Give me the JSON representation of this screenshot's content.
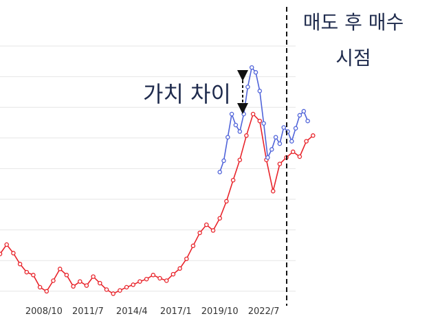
{
  "chart_data": {
    "type": "line",
    "x_ticks": [
      "2008/10",
      "2011/7",
      "2014/4",
      "2017/1",
      "2019/10",
      "2022/7"
    ],
    "y_gridlines": 9,
    "grid": "horizontal",
    "legend": "none",
    "series": [
      {
        "color": "#e8232a",
        "marker": "open-circle",
        "points": [
          [
            "2006/1",
            0.56
          ],
          [
            "2006/6",
            0.583
          ],
          [
            "2006/11",
            0.562
          ],
          [
            "2007/4",
            0.535
          ],
          [
            "2007/9",
            0.515
          ],
          [
            "2008/2",
            0.508
          ],
          [
            "2008/7",
            0.478
          ],
          [
            "2008/12",
            0.468
          ],
          [
            "2009/5",
            0.494
          ],
          [
            "2009/10",
            0.523
          ],
          [
            "2010/3",
            0.508
          ],
          [
            "2010/8",
            0.48
          ],
          [
            "2011/1",
            0.492
          ],
          [
            "2011/6",
            0.482
          ],
          [
            "2011/11",
            0.504
          ],
          [
            "2012/4",
            0.488
          ],
          [
            "2012/9",
            0.472
          ],
          [
            "2013/2",
            0.462
          ],
          [
            "2013/7",
            0.47
          ],
          [
            "2013/12",
            0.478
          ],
          [
            "2014/5",
            0.484
          ],
          [
            "2014/10",
            0.492
          ],
          [
            "2015/3",
            0.498
          ],
          [
            "2015/8",
            0.508
          ],
          [
            "2016/1",
            0.5
          ],
          [
            "2016/6",
            0.494
          ],
          [
            "2016/11",
            0.51
          ],
          [
            "2017/4",
            0.524
          ],
          [
            "2017/9",
            0.548
          ],
          [
            "2018/2",
            0.58
          ],
          [
            "2018/7",
            0.612
          ],
          [
            "2018/12",
            0.632
          ],
          [
            "2019/5",
            0.618
          ],
          [
            "2019/10",
            0.648
          ],
          [
            "2020/3",
            0.69
          ],
          [
            "2020/8",
            0.742
          ],
          [
            "2021/1",
            0.792
          ],
          [
            "2021/6",
            0.852
          ],
          [
            "2021/11",
            0.905
          ],
          [
            "2022/4",
            0.888
          ],
          [
            "2022/9",
            0.792
          ],
          [
            "2023/2",
            0.715
          ],
          [
            "2023/7",
            0.782
          ],
          [
            "2023/12",
            0.798
          ],
          [
            "2024/5",
            0.812
          ],
          [
            "2024/10",
            0.8
          ],
          [
            "2025/3",
            0.838
          ],
          [
            "2025/8",
            0.852
          ]
        ]
      },
      {
        "color": "#4f63d9",
        "marker": "open-circle",
        "points": [
          [
            "2019/10",
            0.762
          ],
          [
            "2020/1",
            0.79
          ],
          [
            "2020/4",
            0.848
          ],
          [
            "2020/7",
            0.905
          ],
          [
            "2020/10",
            0.878
          ],
          [
            "2021/1",
            0.862
          ],
          [
            "2021/4",
            0.905
          ],
          [
            "2021/7",
            0.972
          ],
          [
            "2021/10",
            1.02
          ],
          [
            "2022/1",
            1.008
          ],
          [
            "2022/4",
            0.962
          ],
          [
            "2022/7",
            0.882
          ],
          [
            "2022/10",
            0.798
          ],
          [
            "2023/1",
            0.818
          ],
          [
            "2023/4",
            0.848
          ],
          [
            "2023/7",
            0.832
          ],
          [
            "2023/10",
            0.872
          ],
          [
            "2024/1",
            0.862
          ],
          [
            "2024/4",
            0.838
          ],
          [
            "2024/7",
            0.87
          ],
          [
            "2024/10",
            0.902
          ],
          [
            "2025/1",
            0.912
          ],
          [
            "2025/4",
            0.888
          ]
        ]
      }
    ],
    "annotations": {
      "value_gap": "가치 차이",
      "switch_line_1": "매도 후 매수",
      "switch_line_2": "시점"
    }
  }
}
